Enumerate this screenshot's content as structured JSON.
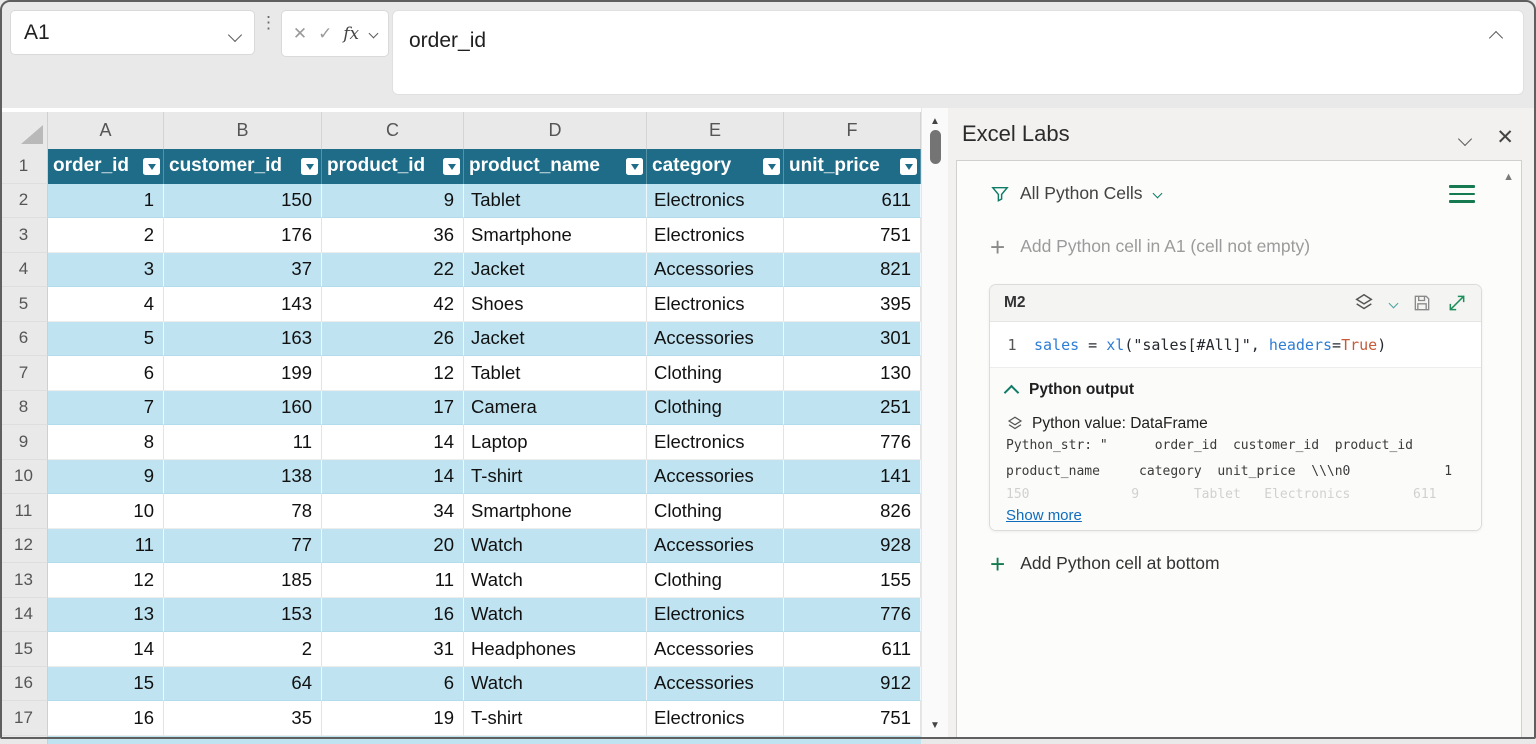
{
  "colors": {
    "table_header": "#1e6c87",
    "band_blue": "#bfe3f1",
    "excel_green": "#157a4f",
    "code_blue": "#2e7cd6",
    "code_orange": "#c75b39",
    "link_blue": "#0f6cbd"
  },
  "formula_bar": {
    "name_box_value": "A1",
    "fx_label": "fx",
    "formula_text": "order_id"
  },
  "grid": {
    "column_letters": [
      "A",
      "B",
      "C",
      "D",
      "E",
      "F"
    ],
    "table": {
      "headers": [
        "order_id",
        "customer_id",
        "product_id",
        "product_name",
        "category",
        "unit_price"
      ],
      "rows": [
        [
          1,
          150,
          9,
          "Tablet",
          "Electronics",
          611
        ],
        [
          2,
          176,
          36,
          "Smartphone",
          "Electronics",
          751
        ],
        [
          3,
          37,
          22,
          "Jacket",
          "Accessories",
          821
        ],
        [
          4,
          143,
          42,
          "Shoes",
          "Electronics",
          395
        ],
        [
          5,
          163,
          26,
          "Jacket",
          "Accessories",
          301
        ],
        [
          6,
          199,
          12,
          "Tablet",
          "Clothing",
          130
        ],
        [
          7,
          160,
          17,
          "Camera",
          "Clothing",
          251
        ],
        [
          8,
          11,
          14,
          "Laptop",
          "Electronics",
          776
        ],
        [
          9,
          138,
          14,
          "T-shirt",
          "Accessories",
          141
        ],
        [
          10,
          78,
          34,
          "Smartphone",
          "Clothing",
          826
        ],
        [
          11,
          77,
          20,
          "Watch",
          "Accessories",
          928
        ],
        [
          12,
          185,
          11,
          "Watch",
          "Clothing",
          155
        ],
        [
          13,
          153,
          16,
          "Watch",
          "Electronics",
          776
        ],
        [
          14,
          2,
          31,
          "Headphones",
          "Accessories",
          611
        ],
        [
          15,
          64,
          6,
          "Watch",
          "Accessories",
          912
        ],
        [
          16,
          35,
          19,
          "T-shirt",
          "Electronics",
          751
        ]
      ]
    }
  },
  "panel": {
    "title": "Excel Labs",
    "filter_label": "All Python Cells",
    "add_cell_top_label": "Add Python cell in A1 (cell not empty)",
    "add_cell_bottom_label": "Add Python cell at bottom",
    "cell": {
      "name": "M2",
      "line_number": "1",
      "code_segments": [
        {
          "t": "sales",
          "c": "blue"
        },
        {
          "t": " = ",
          "c": "dark"
        },
        {
          "t": "xl",
          "c": "blue"
        },
        {
          "t": "(",
          "c": "dark"
        },
        {
          "t": "\"sales[#All]\"",
          "c": "dark"
        },
        {
          "t": ", ",
          "c": "dark"
        },
        {
          "t": "headers",
          "c": "blue"
        },
        {
          "t": "=",
          "c": "dark"
        },
        {
          "t": "True",
          "c": "orange"
        },
        {
          "t": ")",
          "c": "dark"
        }
      ],
      "output_header": "Python output",
      "value_line": "Python value: DataFrame",
      "repr_line1": "Python_str: \"      order_id  customer_id  product_id",
      "repr_line2": "product_name     category  unit_price  \\\\\\n0            1",
      "repr_line3_faded": "150             9       Tablet   Electronics        611",
      "show_more_label": "Show more"
    }
  }
}
